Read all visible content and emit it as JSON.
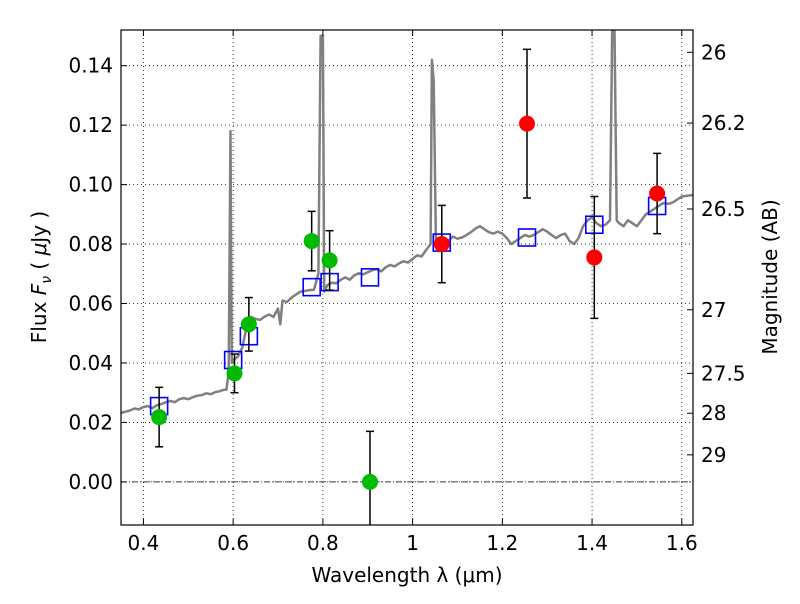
{
  "chart_data": {
    "type": "scatter",
    "title": "",
    "xlabel": "Wavelength  λ (μm)",
    "ylabel": "Flux  F_ν  ( μJy )",
    "ylabel_parts": {
      "pre": "Flux  ",
      "var": "F",
      "sub": "ν",
      "post": "  ( ",
      "mu": "μ",
      "unit": "Jy )"
    },
    "y2label": "Magnitude (AB)",
    "xlim": [
      0.35,
      1.625
    ],
    "ylim": [
      -0.0145,
      0.152
    ],
    "grid": true,
    "grid_style": "dotted",
    "xticks": [
      0.4,
      0.6,
      0.8,
      1.0,
      1.2,
      1.4,
      1.6
    ],
    "xtick_labels": [
      "0.4",
      "0.6",
      "0.8",
      "1",
      "1.2",
      "1.4",
      "1.6"
    ],
    "yticks": [
      0.0,
      0.02,
      0.04,
      0.06,
      0.08,
      0.1,
      0.12,
      0.14
    ],
    "ytick_labels": [
      "0.00",
      "0.02",
      "0.04",
      "0.06",
      "0.08",
      "0.10",
      "0.12",
      "0.14"
    ],
    "y2ticks": [
      {
        "flux": 0.1445,
        "label": "26"
      },
      {
        "flux": 0.1207,
        "label": "26.2"
      },
      {
        "flux": 0.0918,
        "label": "26.5"
      },
      {
        "flux": 0.0579,
        "label": "27"
      },
      {
        "flux": 0.0365,
        "label": "27.5"
      },
      {
        "flux": 0.0231,
        "label": "28"
      },
      {
        "flux": 0.0091,
        "label": "29"
      }
    ],
    "model_spectrum": {
      "color": "#808080",
      "points": [
        [
          0.35,
          0.0232
        ],
        [
          0.36,
          0.0236
        ],
        [
          0.37,
          0.024
        ],
        [
          0.38,
          0.0247
        ],
        [
          0.39,
          0.0244
        ],
        [
          0.4,
          0.0252
        ],
        [
          0.41,
          0.0255
        ],
        [
          0.42,
          0.0248
        ],
        [
          0.43,
          0.0258
        ],
        [
          0.44,
          0.0262
        ],
        [
          0.45,
          0.0268
        ],
        [
          0.46,
          0.0272
        ],
        [
          0.47,
          0.0268
        ],
        [
          0.48,
          0.0278
        ],
        [
          0.49,
          0.0282
        ],
        [
          0.5,
          0.0278
        ],
        [
          0.51,
          0.0285
        ],
        [
          0.52,
          0.029
        ],
        [
          0.53,
          0.0292
        ],
        [
          0.54,
          0.0298
        ],
        [
          0.55,
          0.0295
        ],
        [
          0.56,
          0.0302
        ],
        [
          0.57,
          0.0305
        ],
        [
          0.58,
          0.031
        ],
        [
          0.585,
          0.031
        ],
        [
          0.59,
          0.037
        ],
        [
          0.594,
          0.118
        ],
        [
          0.597,
          0.04
        ],
        [
          0.6,
          0.041
        ],
        [
          0.61,
          0.042
        ],
        [
          0.62,
          0.045
        ],
        [
          0.63,
          0.052
        ],
        [
          0.635,
          0.0545
        ],
        [
          0.64,
          0.0555
        ],
        [
          0.65,
          0.0548
        ],
        [
          0.66,
          0.0545
        ],
        [
          0.67,
          0.0556
        ],
        [
          0.68,
          0.0563
        ],
        [
          0.69,
          0.0555
        ],
        [
          0.7,
          0.0583
        ],
        [
          0.705,
          0.053
        ],
        [
          0.71,
          0.061
        ],
        [
          0.72,
          0.0605
        ],
        [
          0.73,
          0.062
        ],
        [
          0.74,
          0.063
        ],
        [
          0.75,
          0.064
        ],
        [
          0.76,
          0.0642
        ],
        [
          0.77,
          0.0645
        ],
        [
          0.78,
          0.0646
        ],
        [
          0.79,
          0.07
        ],
        [
          0.795,
          0.15
        ],
        [
          0.8,
          0.15
        ],
        [
          0.803,
          0.064
        ],
        [
          0.81,
          0.0662
        ],
        [
          0.82,
          0.067
        ],
        [
          0.83,
          0.0668
        ],
        [
          0.84,
          0.068
        ],
        [
          0.85,
          0.0688
        ],
        [
          0.86,
          0.068
        ],
        [
          0.87,
          0.0695
        ],
        [
          0.88,
          0.0702
        ],
        [
          0.89,
          0.0698
        ],
        [
          0.9,
          0.0705
        ],
        [
          0.91,
          0.0712
        ],
        [
          0.92,
          0.0715
        ],
        [
          0.93,
          0.0708
        ],
        [
          0.94,
          0.0722
        ],
        [
          0.95,
          0.073
        ],
        [
          0.96,
          0.0725
        ],
        [
          0.97,
          0.0735
        ],
        [
          0.98,
          0.0742
        ],
        [
          0.99,
          0.0738
        ],
        [
          1.0,
          0.075
        ],
        [
          1.01,
          0.0762
        ],
        [
          1.02,
          0.0758
        ],
        [
          1.03,
          0.078
        ],
        [
          1.04,
          0.08
        ],
        [
          1.043,
          0.142
        ],
        [
          1.047,
          0.135
        ],
        [
          1.052,
          0.081
        ],
        [
          1.06,
          0.08
        ],
        [
          1.07,
          0.079
        ],
        [
          1.075,
          0.08
        ],
        [
          1.08,
          0.0812
        ],
        [
          1.09,
          0.0825
        ],
        [
          1.1,
          0.0818
        ],
        [
          1.11,
          0.0822
        ],
        [
          1.12,
          0.083
        ],
        [
          1.13,
          0.084
        ],
        [
          1.14,
          0.0852
        ],
        [
          1.15,
          0.086
        ],
        [
          1.16,
          0.085
        ],
        [
          1.17,
          0.084
        ],
        [
          1.18,
          0.0835
        ],
        [
          1.19,
          0.0842
        ],
        [
          1.2,
          0.0835
        ],
        [
          1.21,
          0.082
        ],
        [
          1.22,
          0.08
        ],
        [
          1.23,
          0.081
        ],
        [
          1.24,
          0.082
        ],
        [
          1.25,
          0.083
        ],
        [
          1.26,
          0.0825
        ],
        [
          1.27,
          0.083
        ],
        [
          1.28,
          0.084
        ],
        [
          1.29,
          0.085
        ],
        [
          1.3,
          0.0842
        ],
        [
          1.31,
          0.083
        ],
        [
          1.32,
          0.082
        ],
        [
          1.33,
          0.083
        ],
        [
          1.34,
          0.0835
        ],
        [
          1.35,
          0.081
        ],
        [
          1.36,
          0.08
        ],
        [
          1.37,
          0.082
        ],
        [
          1.38,
          0.086
        ],
        [
          1.39,
          0.088
        ],
        [
          1.4,
          0.089
        ],
        [
          1.41,
          0.087
        ],
        [
          1.42,
          0.086
        ],
        [
          1.43,
          0.0865
        ],
        [
          1.44,
          0.088
        ],
        [
          1.445,
          0.152
        ],
        [
          1.45,
          0.152
        ],
        [
          1.455,
          0.088
        ],
        [
          1.46,
          0.087
        ],
        [
          1.47,
          0.086
        ],
        [
          1.48,
          0.088
        ],
        [
          1.49,
          0.087
        ],
        [
          1.5,
          0.086
        ],
        [
          1.51,
          0.088
        ],
        [
          1.52,
          0.09
        ],
        [
          1.53,
          0.091
        ],
        [
          1.54,
          0.092
        ],
        [
          1.55,
          0.093
        ],
        [
          1.56,
          0.0938
        ],
        [
          1.57,
          0.0935
        ],
        [
          1.58,
          0.094
        ],
        [
          1.59,
          0.095
        ],
        [
          1.6,
          0.096
        ],
        [
          1.61,
          0.0962
        ],
        [
          1.625,
          0.0965
        ]
      ]
    },
    "model_photometry": {
      "marker": "open-square",
      "color": "#0000ff",
      "points": [
        [
          0.435,
          0.0255
        ],
        [
          0.6,
          0.041
        ],
        [
          0.635,
          0.049
        ],
        [
          0.775,
          0.0655
        ],
        [
          0.815,
          0.0672
        ],
        [
          0.905,
          0.0688
        ],
        [
          1.065,
          0.0805
        ],
        [
          1.255,
          0.0822
        ],
        [
          1.405,
          0.0865
        ],
        [
          1.545,
          0.0928
        ]
      ]
    },
    "optical_photometry": {
      "marker": "filled-circle",
      "color": "#00bb00",
      "points": [
        {
          "x": 0.435,
          "y": 0.0218,
          "err": 0.01
        },
        {
          "x": 0.603,
          "y": 0.0365,
          "err": 0.0065
        },
        {
          "x": 0.635,
          "y": 0.053,
          "err": 0.009
        },
        {
          "x": 0.775,
          "y": 0.081,
          "err": 0.01
        },
        {
          "x": 0.815,
          "y": 0.0745,
          "err": 0.01
        },
        {
          "x": 0.905,
          "y": 0.0,
          "err": 0.017
        }
      ]
    },
    "nir_photometry": {
      "marker": "filled-circle",
      "color": "#ff0000",
      "points": [
        {
          "x": 1.065,
          "y": 0.08,
          "err": 0.013
        },
        {
          "x": 1.255,
          "y": 0.1205,
          "err": 0.025
        },
        {
          "x": 1.405,
          "y": 0.0755,
          "err": 0.0205
        },
        {
          "x": 1.545,
          "y": 0.097,
          "err": 0.0135
        }
      ]
    }
  }
}
